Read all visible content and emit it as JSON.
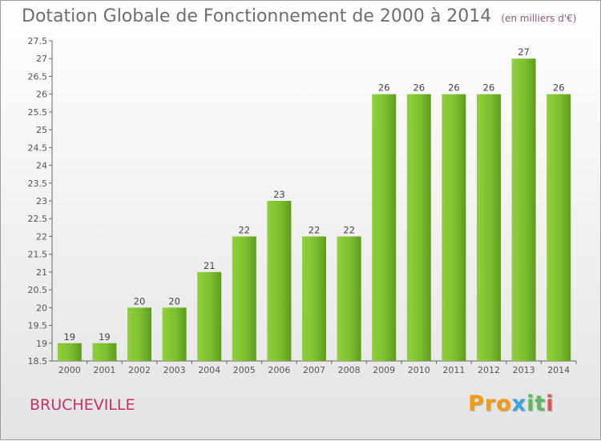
{
  "chart_data": {
    "type": "bar",
    "title": "Dotation Globale de Fonctionnement de 2000 à 2014",
    "unit_note": "(en milliers d'€)",
    "categories": [
      "2000",
      "2001",
      "2002",
      "2003",
      "2004",
      "2005",
      "2006",
      "2007",
      "2008",
      "2009",
      "2010",
      "2011",
      "2012",
      "2013",
      "2014"
    ],
    "values": [
      19,
      19,
      20,
      20,
      21,
      22,
      23,
      22,
      22,
      26,
      26,
      26,
      26,
      27,
      26
    ],
    "value_labels": [
      "19",
      "19",
      "20",
      "20",
      "21",
      "22",
      "23",
      "22",
      "22",
      "26",
      "26",
      "26",
      "26",
      "27",
      "26"
    ],
    "ylim": [
      18.5,
      27.5
    ],
    "yticks": [
      "18.5",
      "19",
      "19.5",
      "20",
      "20.5",
      "21",
      "21.5",
      "22",
      "22.5",
      "23",
      "23.5",
      "24",
      "24.5",
      "25",
      "25.5",
      "26",
      "26.5",
      "27",
      "27.5"
    ],
    "grid": false,
    "bar_color": "#7cc030"
  },
  "commune": "BRUCHEVILLE",
  "logo": {
    "p1": "Pro",
    "p2": "x",
    "p3": "it",
    "p4": "i"
  }
}
